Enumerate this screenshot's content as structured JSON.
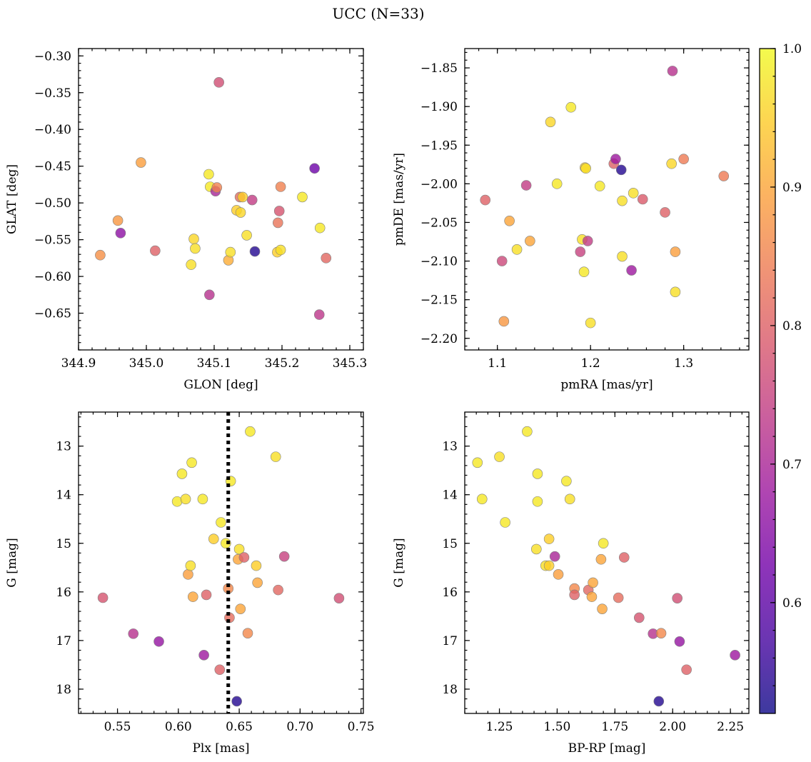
{
  "title": "UCC (N=33)",
  "colormap": {
    "name": "plasma",
    "range": [
      0.52,
      1.0
    ],
    "ticks": [
      0.6,
      0.7,
      0.8,
      0.9,
      1.0
    ],
    "tick_labels": [
      "0.6",
      "0.7",
      "0.8",
      "0.9",
      "1.0"
    ],
    "stops": [
      "#0d0887",
      "#46039f",
      "#7201a8",
      "#9c179e",
      "#bd3786",
      "#d8576b",
      "#ed7953",
      "#fb9f3a",
      "#fdca26",
      "#f0f921"
    ],
    "marker_alpha": 0.8
  },
  "chart_data": [
    {
      "type": "scatter",
      "title": "",
      "xlabel": "GLON [deg]",
      "ylabel": "GLAT [deg]",
      "xlim": [
        344.9,
        345.32
      ],
      "ylim": [
        -0.7,
        -0.29
      ],
      "y_inverted": false,
      "xticks": [
        344.9,
        345.0,
        345.1,
        345.2,
        345.3
      ],
      "xtick_labels": [
        "344.9",
        "345.0",
        "345.1",
        "345.2",
        "345.3"
      ],
      "yticks": [
        -0.65,
        -0.6,
        -0.55,
        -0.5,
        -0.45,
        -0.4,
        -0.35,
        -0.3
      ],
      "ytick_labels": [
        "−0.65",
        "−0.60",
        "−0.55",
        "−0.50",
        "−0.45",
        "−0.40",
        "−0.35",
        "−0.30"
      ],
      "x_minor_step": 0.02,
      "y_minor_step": 0.01,
      "grid": false,
      "vline": null,
      "points": [
        {
          "x": 344.932,
          "y": -0.571,
          "c": 0.87
        },
        {
          "x": 344.958,
          "y": -0.524,
          "c": 0.88
        },
        {
          "x": 344.962,
          "y": -0.541,
          "c": 0.66
        },
        {
          "x": 344.992,
          "y": -0.445,
          "c": 0.89
        },
        {
          "x": 345.013,
          "y": -0.565,
          "c": 0.8
        },
        {
          "x": 345.066,
          "y": -0.584,
          "c": 0.97
        },
        {
          "x": 345.07,
          "y": -0.549,
          "c": 0.96
        },
        {
          "x": 345.072,
          "y": -0.562,
          "c": 0.97
        },
        {
          "x": 345.092,
          "y": -0.461,
          "c": 0.98
        },
        {
          "x": 345.093,
          "y": -0.625,
          "c": 0.72
        },
        {
          "x": 345.094,
          "y": -0.478,
          "c": 0.98
        },
        {
          "x": 345.102,
          "y": -0.484,
          "c": 0.7
        },
        {
          "x": 345.104,
          "y": -0.479,
          "c": 0.85
        },
        {
          "x": 345.107,
          "y": -0.336,
          "c": 0.77
        },
        {
          "x": 345.121,
          "y": -0.578,
          "c": 0.91
        },
        {
          "x": 345.124,
          "y": -0.567,
          "c": 0.97
        },
        {
          "x": 345.133,
          "y": -0.51,
          "c": 0.95
        },
        {
          "x": 345.138,
          "y": -0.492,
          "c": 0.82
        },
        {
          "x": 345.139,
          "y": -0.513,
          "c": 0.96
        },
        {
          "x": 345.142,
          "y": -0.492,
          "c": 0.95
        },
        {
          "x": 345.148,
          "y": -0.544,
          "c": 0.97
        },
        {
          "x": 345.156,
          "y": -0.496,
          "c": 0.74
        },
        {
          "x": 345.16,
          "y": -0.566,
          "c": 0.54
        },
        {
          "x": 345.193,
          "y": -0.567,
          "c": 0.95
        },
        {
          "x": 345.194,
          "y": -0.527,
          "c": 0.83
        },
        {
          "x": 345.196,
          "y": -0.511,
          "c": 0.78
        },
        {
          "x": 345.198,
          "y": -0.478,
          "c": 0.85
        },
        {
          "x": 345.198,
          "y": -0.564,
          "c": 0.97
        },
        {
          "x": 345.23,
          "y": -0.492,
          "c": 0.98
        },
        {
          "x": 345.248,
          "y": -0.453,
          "c": 0.62
        },
        {
          "x": 345.256,
          "y": -0.534,
          "c": 0.98
        },
        {
          "x": 345.255,
          "y": -0.652,
          "c": 0.73
        },
        {
          "x": 345.265,
          "y": -0.575,
          "c": 0.81
        }
      ]
    },
    {
      "type": "scatter",
      "title": "",
      "xlabel": "pmRA [mas/yr]",
      "ylabel": "pmDE [mas/yr]",
      "xlim": [
        1.065,
        1.37
      ],
      "ylim": [
        -2.215,
        -1.825
      ],
      "y_inverted": false,
      "xticks": [
        1.1,
        1.2,
        1.3
      ],
      "xtick_labels": [
        "1.1",
        "1.2",
        "1.3"
      ],
      "yticks": [
        -2.2,
        -2.15,
        -2.1,
        -2.05,
        -2.0,
        -1.95,
        -1.9,
        -1.85
      ],
      "ytick_labels": [
        "−2.20",
        "−2.15",
        "−2.10",
        "−2.05",
        "−2.00",
        "−1.95",
        "−1.90",
        "−1.85"
      ],
      "x_minor_step": 0.02,
      "y_minor_step": 0.01,
      "grid": false,
      "vline": null,
      "points": [
        {
          "x": 1.087,
          "y": -2.021,
          "c": 0.8
        },
        {
          "x": 1.105,
          "y": -2.1,
          "c": 0.76
        },
        {
          "x": 1.107,
          "y": -2.178,
          "c": 0.88
        },
        {
          "x": 1.113,
          "y": -2.048,
          "c": 0.9
        },
        {
          "x": 1.121,
          "y": -2.085,
          "c": 0.97
        },
        {
          "x": 1.131,
          "y": -2.002,
          "c": 0.74
        },
        {
          "x": 1.135,
          "y": -2.074,
          "c": 0.9
        },
        {
          "x": 1.157,
          "y": -1.92,
          "c": 0.96
        },
        {
          "x": 1.164,
          "y": -2.0,
          "c": 0.98
        },
        {
          "x": 1.179,
          "y": -1.901,
          "c": 0.98
        },
        {
          "x": 1.189,
          "y": -2.088,
          "c": 0.75
        },
        {
          "x": 1.191,
          "y": -2.072,
          "c": 0.97
        },
        {
          "x": 1.193,
          "y": -2.114,
          "c": 0.98
        },
        {
          "x": 1.194,
          "y": -1.979,
          "c": 0.95
        },
        {
          "x": 1.195,
          "y": -1.98,
          "c": 0.97
        },
        {
          "x": 1.197,
          "y": -2.074,
          "c": 0.74
        },
        {
          "x": 1.2,
          "y": -2.18,
          "c": 0.97
        },
        {
          "x": 1.21,
          "y": -2.003,
          "c": 0.98
        },
        {
          "x": 1.225,
          "y": -1.974,
          "c": 0.8
        },
        {
          "x": 1.227,
          "y": -1.968,
          "c": 0.68
        },
        {
          "x": 1.233,
          "y": -1.982,
          "c": 0.54
        },
        {
          "x": 1.234,
          "y": -2.022,
          "c": 0.97
        },
        {
          "x": 1.234,
          "y": -2.094,
          "c": 0.97
        },
        {
          "x": 1.244,
          "y": -2.112,
          "c": 0.68
        },
        {
          "x": 1.246,
          "y": -2.012,
          "c": 0.97
        },
        {
          "x": 1.256,
          "y": -2.02,
          "c": 0.79
        },
        {
          "x": 1.28,
          "y": -2.037,
          "c": 0.8
        },
        {
          "x": 1.287,
          "y": -1.974,
          "c": 0.96
        },
        {
          "x": 1.288,
          "y": -1.854,
          "c": 0.72
        },
        {
          "x": 1.291,
          "y": -2.088,
          "c": 0.89
        },
        {
          "x": 1.291,
          "y": -2.14,
          "c": 0.97
        },
        {
          "x": 1.3,
          "y": -1.968,
          "c": 0.84
        },
        {
          "x": 1.343,
          "y": -1.99,
          "c": 0.84
        }
      ]
    },
    {
      "type": "scatter",
      "title": "",
      "xlabel": "Plx [mas]",
      "ylabel": "G [mag]",
      "xlim": [
        0.518,
        0.752
      ],
      "ylim": [
        12.3,
        18.5
      ],
      "y_inverted": true,
      "xticks": [
        0.55,
        0.6,
        0.65,
        0.7,
        0.75
      ],
      "xtick_labels": [
        "0.55",
        "0.60",
        "0.65",
        "0.70",
        "0.75"
      ],
      "yticks": [
        13,
        14,
        15,
        16,
        17,
        18
      ],
      "ytick_labels": [
        "13",
        "14",
        "15",
        "16",
        "17",
        "18"
      ],
      "x_minor_step": 0.01,
      "y_minor_step": 0.2,
      "grid": false,
      "vline": {
        "x": 0.641,
        "style": "dotted"
      },
      "points": [
        {
          "x": 0.538,
          "y": 16.12,
          "c": 0.78
        },
        {
          "x": 0.563,
          "y": 16.86,
          "c": 0.72
        },
        {
          "x": 0.584,
          "y": 17.02,
          "c": 0.67
        },
        {
          "x": 0.599,
          "y": 14.14,
          "c": 0.98
        },
        {
          "x": 0.603,
          "y": 13.57,
          "c": 0.98
        },
        {
          "x": 0.606,
          "y": 14.09,
          "c": 0.97
        },
        {
          "x": 0.608,
          "y": 15.64,
          "c": 0.89
        },
        {
          "x": 0.61,
          "y": 15.46,
          "c": 0.97
        },
        {
          "x": 0.611,
          "y": 13.34,
          "c": 0.98
        },
        {
          "x": 0.612,
          "y": 16.1,
          "c": 0.9
        },
        {
          "x": 0.62,
          "y": 14.09,
          "c": 0.98
        },
        {
          "x": 0.621,
          "y": 17.3,
          "c": 0.68
        },
        {
          "x": 0.623,
          "y": 16.06,
          "c": 0.8
        },
        {
          "x": 0.629,
          "y": 14.91,
          "c": 0.95
        },
        {
          "x": 0.634,
          "y": 17.6,
          "c": 0.8
        },
        {
          "x": 0.635,
          "y": 14.57,
          "c": 0.98
        },
        {
          "x": 0.639,
          "y": 15.0,
          "c": 0.98
        },
        {
          "x": 0.641,
          "y": 15.93,
          "c": 0.86
        },
        {
          "x": 0.642,
          "y": 16.53,
          "c": 0.82
        },
        {
          "x": 0.643,
          "y": 13.72,
          "c": 0.98
        },
        {
          "x": 0.648,
          "y": 18.25,
          "c": 0.54
        },
        {
          "x": 0.649,
          "y": 15.33,
          "c": 0.9
        },
        {
          "x": 0.65,
          "y": 15.12,
          "c": 0.97
        },
        {
          "x": 0.651,
          "y": 16.35,
          "c": 0.9
        },
        {
          "x": 0.654,
          "y": 15.29,
          "c": 0.8
        },
        {
          "x": 0.657,
          "y": 16.85,
          "c": 0.86
        },
        {
          "x": 0.659,
          "y": 12.7,
          "c": 0.98
        },
        {
          "x": 0.664,
          "y": 15.46,
          "c": 0.95
        },
        {
          "x": 0.665,
          "y": 15.81,
          "c": 0.9
        },
        {
          "x": 0.68,
          "y": 13.22,
          "c": 0.97
        },
        {
          "x": 0.682,
          "y": 15.96,
          "c": 0.81
        },
        {
          "x": 0.687,
          "y": 15.27,
          "c": 0.75
        },
        {
          "x": 0.732,
          "y": 16.13,
          "c": 0.77
        }
      ]
    },
    {
      "type": "scatter",
      "title": "",
      "xlabel": "BP-RP [mag]",
      "ylabel": "G [mag]",
      "xlim": [
        1.1,
        2.33
      ],
      "ylim": [
        12.3,
        18.5
      ],
      "y_inverted": true,
      "xticks": [
        1.25,
        1.5,
        1.75,
        2.0,
        2.25
      ],
      "xtick_labels": [
        "1.25",
        "1.50",
        "1.75",
        "2.00",
        "2.25"
      ],
      "yticks": [
        13,
        14,
        15,
        16,
        17,
        18
      ],
      "ytick_labels": [
        "13",
        "14",
        "15",
        "16",
        "17",
        "18"
      ],
      "x_minor_step": 0.05,
      "y_minor_step": 0.2,
      "grid": false,
      "vline": null,
      "points": [
        {
          "x": 1.155,
          "y": 13.34,
          "c": 0.98
        },
        {
          "x": 1.175,
          "y": 14.09,
          "c": 0.98
        },
        {
          "x": 1.25,
          "y": 13.22,
          "c": 0.97
        },
        {
          "x": 1.275,
          "y": 14.57,
          "c": 0.98
        },
        {
          "x": 1.37,
          "y": 12.7,
          "c": 0.98
        },
        {
          "x": 1.41,
          "y": 15.12,
          "c": 0.97
        },
        {
          "x": 1.415,
          "y": 13.57,
          "c": 0.98
        },
        {
          "x": 1.415,
          "y": 14.14,
          "c": 0.98
        },
        {
          "x": 1.45,
          "y": 15.46,
          "c": 0.97
        },
        {
          "x": 1.465,
          "y": 14.91,
          "c": 0.95
        },
        {
          "x": 1.465,
          "y": 15.46,
          "c": 0.95
        },
        {
          "x": 1.49,
          "y": 15.27,
          "c": 0.7
        },
        {
          "x": 1.505,
          "y": 15.64,
          "c": 0.89
        },
        {
          "x": 1.54,
          "y": 13.72,
          "c": 0.98
        },
        {
          "x": 1.555,
          "y": 14.09,
          "c": 0.97
        },
        {
          "x": 1.575,
          "y": 15.93,
          "c": 0.86
        },
        {
          "x": 1.575,
          "y": 16.06,
          "c": 0.8
        },
        {
          "x": 1.635,
          "y": 15.96,
          "c": 0.81
        },
        {
          "x": 1.65,
          "y": 16.1,
          "c": 0.9
        },
        {
          "x": 1.655,
          "y": 15.81,
          "c": 0.9
        },
        {
          "x": 1.69,
          "y": 15.33,
          "c": 0.9
        },
        {
          "x": 1.695,
          "y": 16.35,
          "c": 0.9
        },
        {
          "x": 1.7,
          "y": 15.0,
          "c": 0.98
        },
        {
          "x": 1.765,
          "y": 16.12,
          "c": 0.82
        },
        {
          "x": 1.79,
          "y": 15.29,
          "c": 0.8
        },
        {
          "x": 1.855,
          "y": 16.53,
          "c": 0.78
        },
        {
          "x": 1.915,
          "y": 16.86,
          "c": 0.72
        },
        {
          "x": 1.94,
          "y": 18.25,
          "c": 0.54
        },
        {
          "x": 1.95,
          "y": 16.85,
          "c": 0.86
        },
        {
          "x": 2.02,
          "y": 16.13,
          "c": 0.77
        },
        {
          "x": 2.03,
          "y": 17.02,
          "c": 0.67
        },
        {
          "x": 2.06,
          "y": 17.6,
          "c": 0.8
        },
        {
          "x": 2.27,
          "y": 17.3,
          "c": 0.68
        }
      ]
    }
  ]
}
